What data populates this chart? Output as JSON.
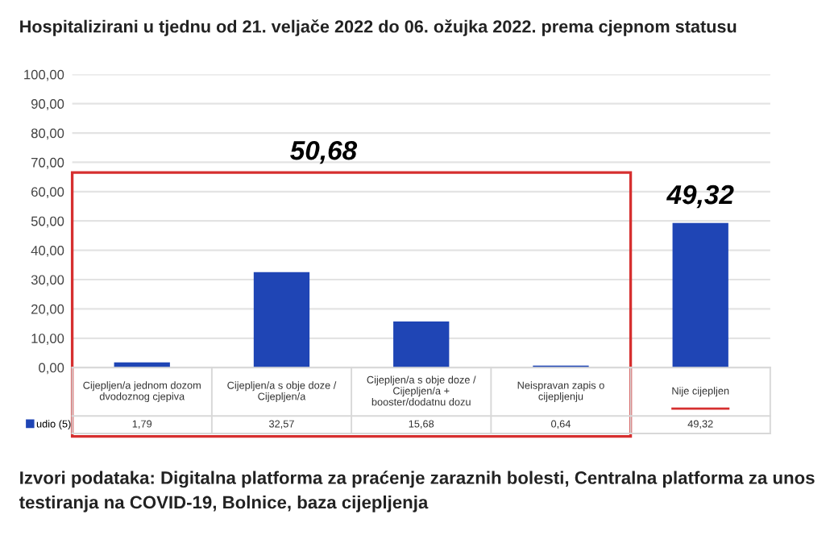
{
  "chart_data": {
    "type": "bar",
    "title": "Hospitalizirani u tjednu od 21. veljače 2022 do 06. ožujka 2022. prema cjepnom statusu",
    "categories": [
      "Cijepljen/a jednom dozom\ndvodoznog cjepiva",
      "Cijepljen/a s obje doze /\nCijepljen/a",
      "Cijepljen/a s obje doze /\nCijepljen/a +\nbooster/dodatnu dozu",
      "Neispravan zapis o\ncijepljenju",
      "Nije cijepljen"
    ],
    "series": [
      {
        "name": "udio (5)",
        "color": "#1f45b5",
        "values": [
          1.79,
          32.57,
          15.68,
          0.64,
          49.32
        ],
        "value_labels": [
          "1,79",
          "32,57",
          "15,68",
          "0,64",
          "49,32"
        ]
      }
    ],
    "ylim": [
      0,
      100
    ],
    "yticks": [
      {
        "value": 0,
        "label": "0,00"
      },
      {
        "value": 10,
        "label": "10,00"
      },
      {
        "value": 20,
        "label": "20,00"
      },
      {
        "value": 30,
        "label": "30,00"
      },
      {
        "value": 40,
        "label": "40,00"
      },
      {
        "value": 50,
        "label": "50,00"
      },
      {
        "value": 60,
        "label": "60,00"
      },
      {
        "value": 70,
        "label": "70,00"
      },
      {
        "value": 80,
        "label": "80,00"
      },
      {
        "value": 90,
        "label": "90,00"
      },
      {
        "value": 100,
        "label": "100,00"
      }
    ],
    "grid": "y",
    "legend": "bottom left",
    "annotations": [
      "50,68",
      {
        "text": "49,32",
        "x": "Nije cijepljen",
        "y": 49.32
      },
      "Izvori podataka: Digitalna platforma za praćenje zaraznih bolesti, Centralna platforma za unos testiranja na COVID-19, Bolnice, baza cijepljenja"
    ]
  }
}
